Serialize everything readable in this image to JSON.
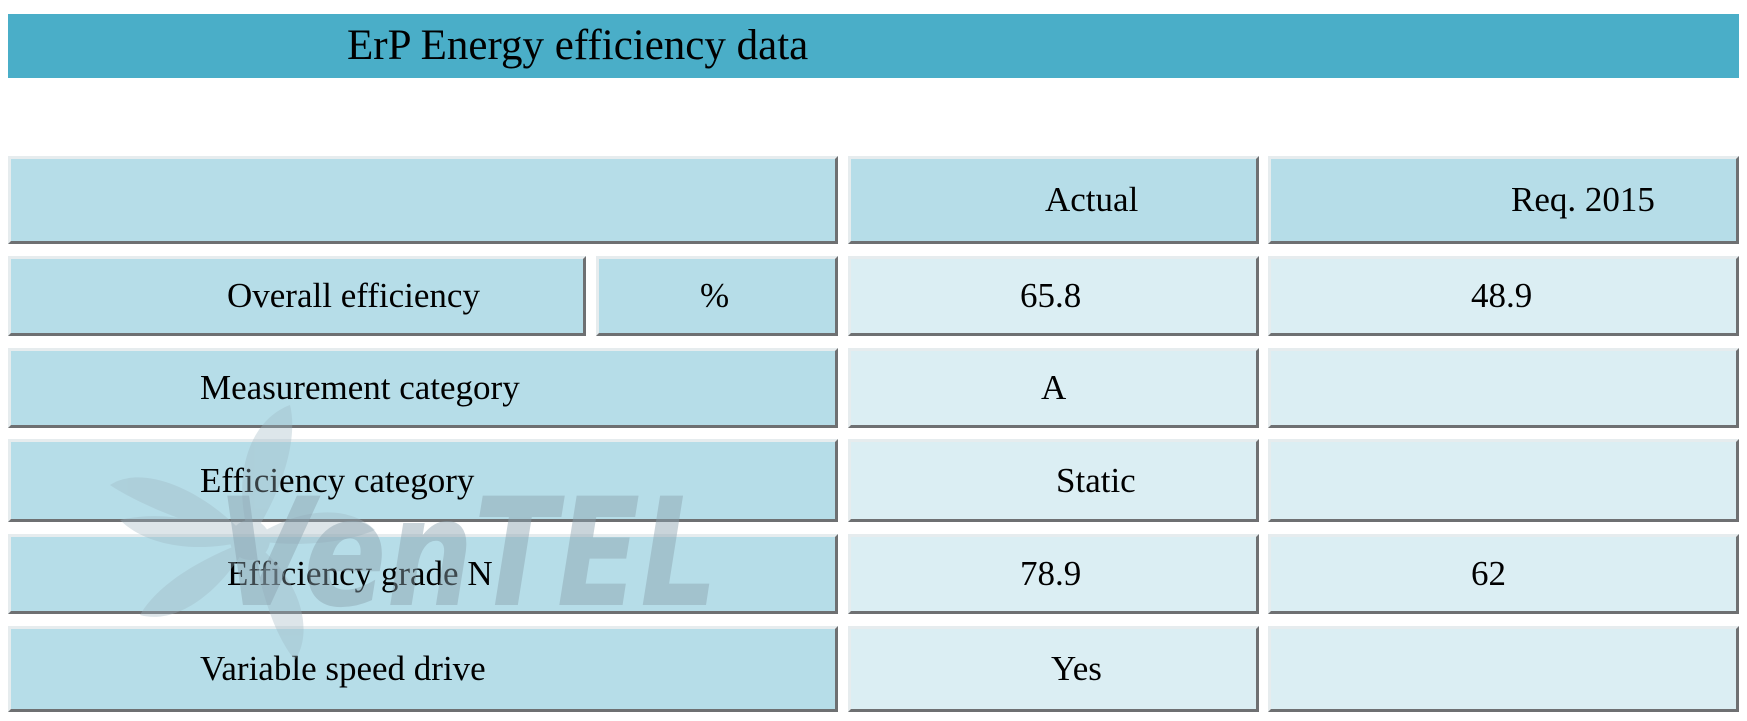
{
  "title": "ErP Energy efficiency data",
  "header": {
    "actual_label": "Actual",
    "req_label": "Req. 2015"
  },
  "rows": {
    "overall": {
      "label": "Overall efficiency",
      "unit": "%",
      "actual": "65.8",
      "req": "48.9"
    },
    "measurement": {
      "label": "Measurement category",
      "actual": "A",
      "req": ""
    },
    "efficiency_category": {
      "label": "Efficiency category",
      "actual": "Static",
      "req": ""
    },
    "grade": {
      "label": "Efficiency grade N",
      "actual": "78.9",
      "req": "62"
    },
    "vsd": {
      "label": "Variable speed drive",
      "actual": "Yes",
      "req": ""
    }
  },
  "watermark": {
    "text": "VenTEL",
    "icon": "fan-icon",
    "colors": {
      "fan": "#9fb7c2",
      "text_dark": "#8aa2ae",
      "text_accent": "#5fa9d6"
    }
  },
  "colors": {
    "title_bar": "#4aaec8",
    "cell_dark": "#b6dde8",
    "cell_light": "#dbeef3"
  }
}
